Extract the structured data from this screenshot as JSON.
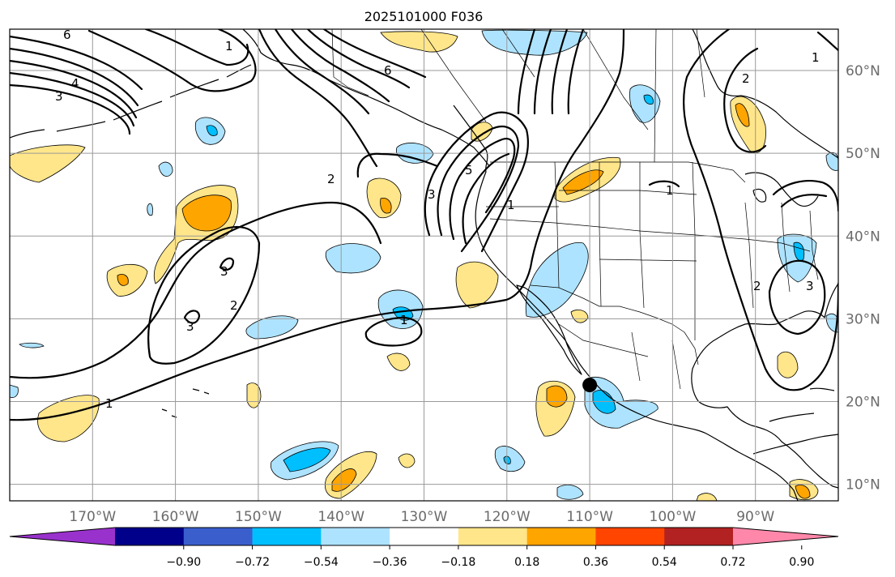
{
  "title": "2025101000 F036",
  "map": {
    "lon_range": [
      -180,
      -80
    ],
    "lat_range": [
      8,
      65
    ],
    "lon_labels": [
      "170°W",
      "160°W",
      "150°W",
      "140°W",
      "130°W",
      "120°W",
      "110°W",
      "100°W",
      "90°W"
    ],
    "lat_labels": [
      "60°N",
      "50°N",
      "40°N",
      "30°N",
      "20°N",
      "10°N"
    ],
    "contour_labels": [
      "1",
      "2",
      "3",
      "4",
      "5",
      "6"
    ],
    "marker": {
      "name": "point-of-interest",
      "lon": -110,
      "lat": 22
    }
  },
  "colorbar": {
    "tick_labels": [
      "−0.90",
      "−0.72",
      "−0.54",
      "−0.36",
      "−0.18",
      "0.18",
      "0.36",
      "0.54",
      "0.72",
      "0.90"
    ],
    "colors": [
      "#9932cc",
      "#00008b",
      "#3a5fcd",
      "#00bfff",
      "#aee3ff",
      "#ffffff",
      "#ffe68a",
      "#ffa500",
      "#ff4500",
      "#b22222",
      "#ff88aa"
    ]
  }
}
